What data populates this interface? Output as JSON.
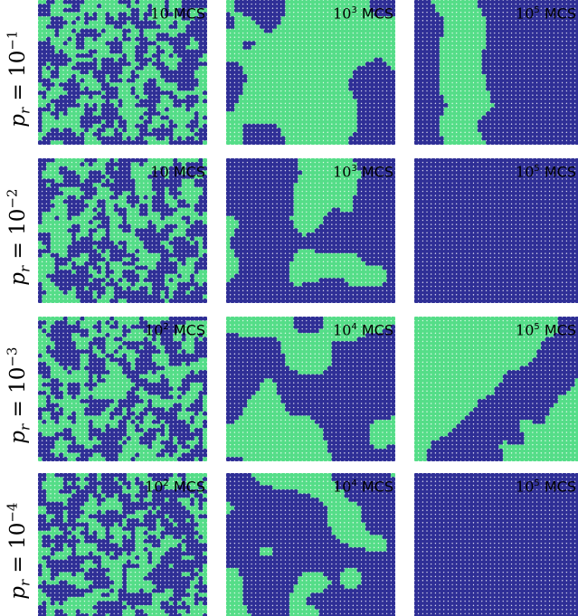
{
  "colors": {
    "green": "#55dd88",
    "blue": "#2f2f96",
    "background": "#ffffff"
  },
  "grid": {
    "cols": 40,
    "rows": 35
  },
  "rows": [
    {
      "label": {
        "p": "p",
        "sub": "r",
        "eq": "=",
        "base": "10",
        "exp": "−1"
      },
      "panels": [
        {
          "time_base": "10",
          "time_exp": "",
          "unit": "MCS",
          "pattern": "fine",
          "seed": 11,
          "green_fraction": 0.48
        },
        {
          "time_base": "10",
          "time_exp": "3",
          "unit": "MCS",
          "pattern": "blobs",
          "seed": 12,
          "green_fraction": 0.38
        },
        {
          "time_base": "10",
          "time_exp": "5",
          "unit": "MCS",
          "pattern": "vstripe",
          "seed": 13,
          "green_fraction": 0.25
        }
      ]
    },
    {
      "label": {
        "p": "p",
        "sub": "r",
        "eq": "=",
        "base": "10",
        "exp": "−2"
      },
      "panels": [
        {
          "time_base": "10",
          "time_exp": "",
          "unit": "MCS",
          "pattern": "fine",
          "seed": 21,
          "green_fraction": 0.48
        },
        {
          "time_base": "10",
          "time_exp": "3",
          "unit": "MCS",
          "pattern": "blobs",
          "seed": 22,
          "green_fraction": 0.25
        },
        {
          "time_base": "10",
          "time_exp": "5",
          "unit": "MCS",
          "pattern": "solid",
          "seed": 23,
          "green_fraction": 0.0
        }
      ]
    },
    {
      "label": {
        "p": "p",
        "sub": "r",
        "eq": "=",
        "base": "10",
        "exp": "−3"
      },
      "panels": [
        {
          "time_base": "10",
          "time_exp": "2",
          "unit": "MCS",
          "pattern": "fine",
          "seed": 31,
          "green_fraction": 0.5
        },
        {
          "time_base": "10",
          "time_exp": "4",
          "unit": "MCS",
          "pattern": "blobs",
          "seed": 32,
          "green_fraction": 0.45
        },
        {
          "time_base": "10",
          "time_exp": "5",
          "unit": "MCS",
          "pattern": "diagonal",
          "seed": 33,
          "green_fraction": 0.55
        }
      ]
    },
    {
      "label": {
        "p": "p",
        "sub": "r",
        "eq": "=",
        "base": "10",
        "exp": "−4"
      },
      "panels": [
        {
          "time_base": "10",
          "time_exp": "2",
          "unit": "MCS",
          "pattern": "fine",
          "seed": 41,
          "green_fraction": 0.5
        },
        {
          "time_base": "10",
          "time_exp": "4",
          "unit": "MCS",
          "pattern": "blobs",
          "seed": 42,
          "green_fraction": 0.3
        },
        {
          "time_base": "10",
          "time_exp": "5",
          "unit": "MCS",
          "pattern": "solid",
          "seed": 43,
          "green_fraction": 0.0
        }
      ]
    }
  ]
}
